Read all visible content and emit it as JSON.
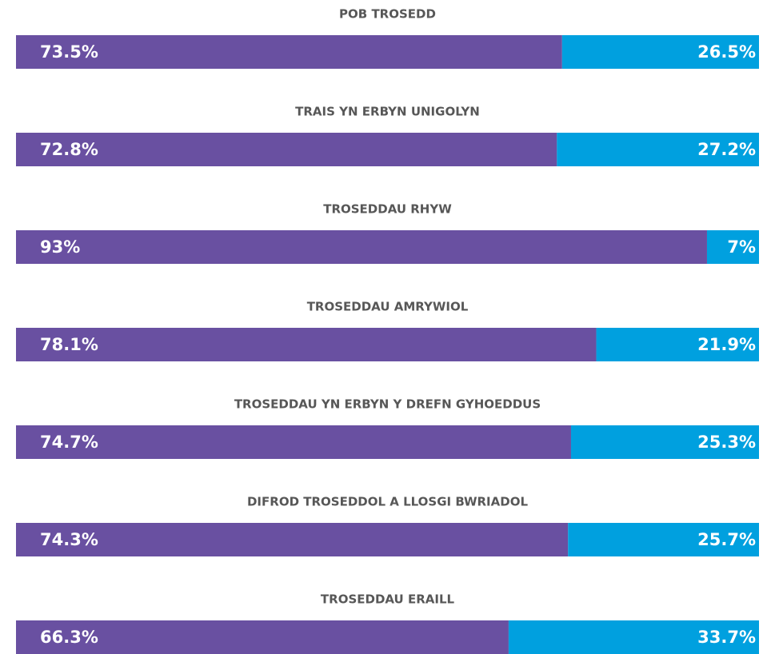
{
  "chart_data": {
    "type": "stacked-bar-horizontal",
    "categories": [
      "POB TROSEDD",
      "TRAIS YN ERBYN UNIGOLYN",
      "TROSEDDAU RHYW",
      "TROSEDDAU AMRYWIOL",
      "TROSEDDAU YN ERBYN Y DREFN GYHOEDDUS",
      "DIFROD TROSEDDOL A LLOSGI BWRIADOL",
      "TROSEDDAU ERAILL"
    ],
    "series": [
      {
        "color": "#6950a1",
        "values": [
          73.5,
          72.8,
          93,
          78.1,
          74.7,
          74.3,
          66.3
        ],
        "value_labels": [
          "73.5%",
          "72.8%",
          "93%",
          "78.1%",
          "74.7%",
          "74.3%",
          "66.3%"
        ]
      },
      {
        "color": "#00a0df",
        "values": [
          26.5,
          27.2,
          7,
          21.9,
          25.3,
          25.7,
          33.7
        ],
        "value_labels": [
          "26.5%",
          "27.2%",
          "7%",
          "21.9%",
          "25.3%",
          "25.7%",
          "33.7%"
        ]
      }
    ],
    "xlim": [
      0,
      100
    ]
  }
}
